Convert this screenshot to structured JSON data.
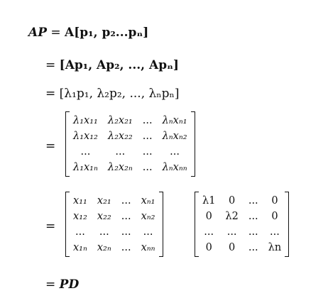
{
  "line1": {
    "lhs": "AP",
    "eq": "=",
    "rhs": "A[p₁, p₂...pₙ]"
  },
  "line2": {
    "eq": "=",
    "rhs": "[Ap₁, Ap₂, ..., Apₙ]"
  },
  "line3": {
    "eq": "=",
    "rhs": "[λ₁p₁, λ₂p₂, ..., λₙpₙ]"
  },
  "line4": {
    "eq": "=",
    "matrix": [
      [
        "λ₁x₁₁",
        "λ₂x₂₁",
        "...",
        "λₙxₙ₁"
      ],
      [
        "λ₁x₁₂",
        "λ₂x₂₂",
        "...",
        "λₙxₙ₂"
      ],
      [
        "...",
        "...",
        "...",
        "..."
      ],
      [
        "λ₁x₁ₙ",
        "λ₂x₂ₙ",
        "...",
        "λₙxₙₙ"
      ]
    ]
  },
  "line5": {
    "eq": "=",
    "matrixP": [
      [
        "x₁₁",
        "x₂₁",
        "...",
        "xₙ₁"
      ],
      [
        "x₁₂",
        "x₂₂",
        "...",
        "xₙ₂"
      ],
      [
        "...",
        "...",
        "...",
        "..."
      ],
      [
        "x₁ₙ",
        "x₂ₙ",
        "...",
        "xₙₙ"
      ]
    ],
    "matrixD": [
      [
        "λ1",
        "0",
        "...",
        "0"
      ],
      [
        "0",
        "λ2",
        "...",
        "0"
      ],
      [
        "...",
        "...",
        "...",
        "..."
      ],
      [
        "0",
        "0",
        "...",
        "λn"
      ]
    ]
  },
  "line6": {
    "eq": "=",
    "rhs": "PD"
  }
}
